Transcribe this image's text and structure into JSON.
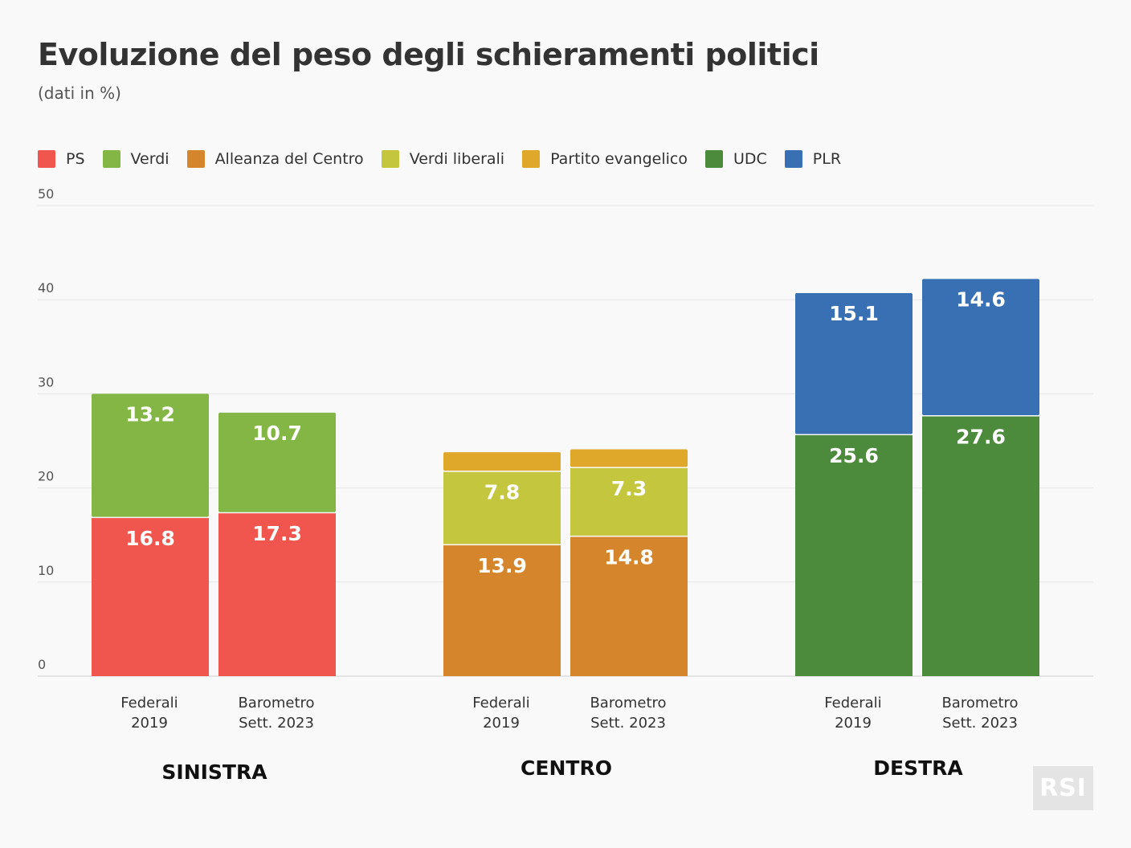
{
  "title": "Evoluzione del peso degli schieramenti politici",
  "subtitle": "(dati in %)",
  "logo": "RSI",
  "legend": [
    {
      "name": "PS",
      "color": "#f0554e"
    },
    {
      "name": "Verdi",
      "color": "#84b645"
    },
    {
      "name": "Alleanza del Centro",
      "color": "#d5862d"
    },
    {
      "name": "Verdi liberali",
      "color": "#c4c63e"
    },
    {
      "name": "Partito evangelico",
      "color": "#e0a82a"
    },
    {
      "name": "UDC",
      "color": "#4c8a3c"
    },
    {
      "name": "PLR",
      "color": "#3970b3"
    }
  ],
  "chart_data": {
    "type": "bar",
    "stacked": true,
    "title": "Evoluzione del peso degli schieramenti politici",
    "subtitle": "(dati in %)",
    "ylim": [
      0,
      50
    ],
    "yticks": [
      0,
      10,
      20,
      30,
      40,
      50
    ],
    "grid": true,
    "legend_position": "top-left",
    "groups": [
      {
        "label": "SINISTRA",
        "bars": [
          {
            "label": [
              "Federali",
              "2019"
            ],
            "segments": [
              {
                "party": "PS",
                "value": 16.8,
                "color": "#f0554e",
                "label": "16.8"
              },
              {
                "party": "Verdi",
                "value": 13.2,
                "color": "#84b645",
                "label": "13.2"
              }
            ]
          },
          {
            "label": [
              "Barometro",
              "Sett. 2023"
            ],
            "segments": [
              {
                "party": "PS",
                "value": 17.3,
                "color": "#f0554e",
                "label": "17.3"
              },
              {
                "party": "Verdi",
                "value": 10.7,
                "color": "#84b645",
                "label": "10.7"
              }
            ]
          }
        ]
      },
      {
        "label": "CENTRO",
        "bars": [
          {
            "label": [
              "Federali",
              "2019"
            ],
            "segments": [
              {
                "party": "Alleanza del Centro",
                "value": 13.9,
                "color": "#d5862d",
                "label": "13.9"
              },
              {
                "party": "Verdi liberali",
                "value": 7.8,
                "color": "#c4c63e",
                "label": "7.8"
              },
              {
                "party": "Partito evangelico",
                "value": 2.1,
                "color": "#e0a82a",
                "label": ""
              }
            ]
          },
          {
            "label": [
              "Barometro",
              "Sett. 2023"
            ],
            "segments": [
              {
                "party": "Alleanza del Centro",
                "value": 14.8,
                "color": "#d5862d",
                "label": "14.8"
              },
              {
                "party": "Verdi liberali",
                "value": 7.3,
                "color": "#c4c63e",
                "label": "7.3"
              },
              {
                "party": "Partito evangelico",
                "value": 2.0,
                "color": "#e0a82a",
                "label": ""
              }
            ]
          }
        ]
      },
      {
        "label": "DESTRA",
        "bars": [
          {
            "label": [
              "Federali",
              "2019"
            ],
            "segments": [
              {
                "party": "UDC",
                "value": 25.6,
                "color": "#4c8a3c",
                "label": "25.6"
              },
              {
                "party": "PLR",
                "value": 15.1,
                "color": "#3970b3",
                "label": "15.1"
              }
            ]
          },
          {
            "label": [
              "Barometro",
              "Sett. 2023"
            ],
            "segments": [
              {
                "party": "UDC",
                "value": 27.6,
                "color": "#4c8a3c",
                "label": "27.6"
              },
              {
                "party": "PLR",
                "value": 14.6,
                "color": "#3970b3",
                "label": "14.6"
              }
            ]
          }
        ]
      }
    ]
  }
}
